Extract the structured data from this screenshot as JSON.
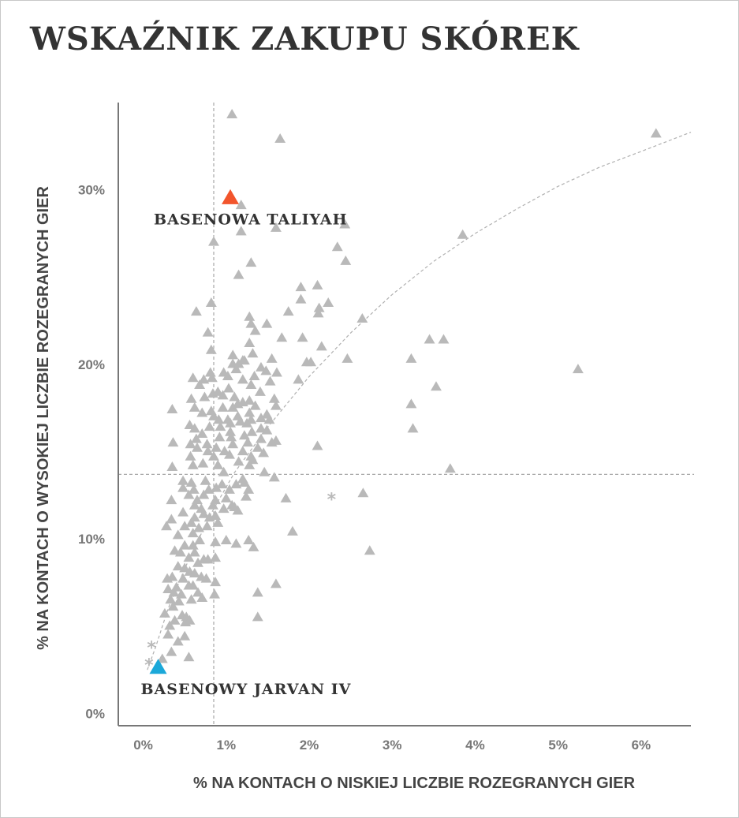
{
  "chart_data": {
    "type": "scatter",
    "title": "WSKAŹNIK ZAKUPU SKÓREK",
    "xlabel": "% NA KONTACH O NISKIEJ LICZBIE ROZEGRANYCH GIER",
    "ylabel": "% NA KONTACH O WYSOKIEJ LICZBIE ROZEGRANYCH GIER",
    "xlim": [
      -0.3,
      6.6
    ],
    "ylim": [
      -0.7,
      35
    ],
    "x_ticks": [
      0,
      1,
      2,
      3,
      4,
      5,
      6
    ],
    "x_tick_labels": [
      "0%",
      "1%",
      "2%",
      "3%",
      "4%",
      "5%",
      "6%"
    ],
    "y_ticks": [
      0,
      10,
      20,
      30
    ],
    "y_tick_labels": [
      "0%",
      "10%",
      "20%",
      "30%"
    ],
    "grid": false,
    "reference_lines": {
      "x": 0.85,
      "y": 13.7
    },
    "trend_curve": [
      [
        0.05,
        2.5
      ],
      [
        0.15,
        3.8
      ],
      [
        0.3,
        6
      ],
      [
        0.5,
        8.3
      ],
      [
        0.8,
        11.3
      ],
      [
        1.1,
        13.8
      ],
      [
        1.5,
        16.4
      ],
      [
        2,
        19.3
      ],
      [
        2.5,
        21.8
      ],
      [
        3,
        24
      ],
      [
        3.5,
        25.9
      ],
      [
        4,
        27.5
      ],
      [
        4.5,
        28.9
      ],
      [
        5,
        30.2
      ],
      [
        5.5,
        31.3
      ],
      [
        6,
        32.2
      ],
      [
        6.6,
        33.3
      ]
    ],
    "colors": {
      "points": "#b9b9b9",
      "taliyah": "#f2552c",
      "jarvan": "#1ba8d9",
      "lines": "#a8a8a8"
    },
    "highlights": [
      {
        "label": "BASENOWA TALIYAH",
        "x": 1.05,
        "y": 29.5,
        "color": "#f2552c"
      },
      {
        "label": "BASENOWY JARVAN IV",
        "x": 0.18,
        "y": 2.6,
        "color": "#1ba8d9"
      }
    ],
    "asterisk_points": [
      [
        2.27,
        12.3
      ],
      [
        0.1,
        3.8
      ],
      [
        0.07,
        2.8
      ]
    ],
    "points": [
      [
        1.07,
        34.3
      ],
      [
        1.65,
        32.9
      ],
      [
        6.18,
        33.2
      ],
      [
        1.18,
        29.1
      ],
      [
        2.43,
        28
      ],
      [
        1.18,
        27.6
      ],
      [
        1.6,
        27.8
      ],
      [
        3.85,
        27.4
      ],
      [
        0.85,
        27
      ],
      [
        2.34,
        26.7
      ],
      [
        2.44,
        25.9
      ],
      [
        1.3,
        25.8
      ],
      [
        1.15,
        25.1
      ],
      [
        1.9,
        24.4
      ],
      [
        2.1,
        24.5
      ],
      [
        1.9,
        23.7
      ],
      [
        2.23,
        23.5
      ],
      [
        2.12,
        23.2
      ],
      [
        1.75,
        23
      ],
      [
        0.64,
        23
      ],
      [
        0.82,
        23.5
      ],
      [
        2.11,
        22.9
      ],
      [
        1.28,
        22.7
      ],
      [
        1.49,
        22.3
      ],
      [
        2.64,
        22.6
      ],
      [
        1.3,
        22.3
      ],
      [
        1.35,
        21.9
      ],
      [
        0.78,
        21.8
      ],
      [
        1.67,
        21.5
      ],
      [
        1.92,
        21.5
      ],
      [
        3.45,
        21.4
      ],
      [
        3.62,
        21.4
      ],
      [
        1.28,
        21.2
      ],
      [
        1.32,
        20.6
      ],
      [
        0.82,
        20.8
      ],
      [
        2.15,
        21
      ],
      [
        1.08,
        20.5
      ],
      [
        1.22,
        20.2
      ],
      [
        1.2,
        20.2
      ],
      [
        1.08,
        20
      ],
      [
        1.15,
        20
      ],
      [
        1.55,
        20.3
      ],
      [
        2.02,
        20.1
      ],
      [
        2.46,
        20.3
      ],
      [
        3.23,
        20.3
      ],
      [
        1.97,
        20.1
      ],
      [
        5.24,
        19.7
      ],
      [
        0.81,
        19.5
      ],
      [
        1.12,
        19.7
      ],
      [
        1.42,
        19.8
      ],
      [
        1.48,
        19.6
      ],
      [
        1.61,
        19.5
      ],
      [
        0.6,
        19.2
      ],
      [
        0.73,
        19.1
      ],
      [
        0.83,
        19.2
      ],
      [
        0.97,
        19.5
      ],
      [
        1.02,
        19.3
      ],
      [
        1.2,
        19.1
      ],
      [
        1.34,
        19.3
      ],
      [
        1.53,
        19
      ],
      [
        1.87,
        19.1
      ],
      [
        1.3,
        18.8
      ],
      [
        0.68,
        18.8
      ],
      [
        1.03,
        18.6
      ],
      [
        1.41,
        18.4
      ],
      [
        3.53,
        18.7
      ],
      [
        0.84,
        18.3
      ],
      [
        0.9,
        18.4
      ],
      [
        0.96,
        18.2
      ],
      [
        1.1,
        18.1
      ],
      [
        0.58,
        18
      ],
      [
        0.74,
        18.1
      ],
      [
        1.28,
        17.9
      ],
      [
        1.58,
        18
      ],
      [
        1.2,
        17.8
      ],
      [
        1.35,
        17.6
      ],
      [
        1.6,
        17.6
      ],
      [
        3.23,
        17.7
      ],
      [
        0.62,
        17.5
      ],
      [
        0.82,
        17.3
      ],
      [
        0.96,
        17.5
      ],
      [
        1.08,
        17.5
      ],
      [
        1.14,
        17.7
      ],
      [
        0.35,
        17.4
      ],
      [
        0.71,
        17.2
      ],
      [
        1.28,
        17.2
      ],
      [
        1.49,
        17.1
      ],
      [
        0.85,
        17
      ],
      [
        0.91,
        16.8
      ],
      [
        1.02,
        16.8
      ],
      [
        1.14,
        17
      ],
      [
        1.3,
        16.8
      ],
      [
        1.42,
        16.9
      ],
      [
        1.52,
        16.8
      ],
      [
        0.56,
        16.5
      ],
      [
        1.05,
        16.6
      ],
      [
        1.17,
        16.7
      ],
      [
        1.25,
        16.6
      ],
      [
        0.62,
        16.3
      ],
      [
        0.8,
        16.4
      ],
      [
        0.93,
        16.4
      ],
      [
        1.42,
        16.3
      ],
      [
        3.25,
        16.3
      ],
      [
        0.71,
        16
      ],
      [
        1.05,
        16.1
      ],
      [
        1.31,
        16.1
      ],
      [
        1.49,
        16.2
      ],
      [
        0.64,
        15.7
      ],
      [
        0.92,
        15.8
      ],
      [
        1.06,
        15.8
      ],
      [
        1.22,
        15.9
      ],
      [
        1.42,
        15.7
      ],
      [
        1.6,
        15.6
      ],
      [
        0.36,
        15.5
      ],
      [
        0.57,
        15.4
      ],
      [
        0.77,
        15.4
      ],
      [
        1.08,
        15.4
      ],
      [
        1.26,
        15.5
      ],
      [
        1.55,
        15.5
      ],
      [
        2.1,
        15.3
      ],
      [
        0.65,
        15.2
      ],
      [
        0.88,
        15.2
      ],
      [
        1.38,
        15.2
      ],
      [
        0.78,
        15
      ],
      [
        0.98,
        15
      ],
      [
        1.2,
        15
      ],
      [
        1.45,
        14.9
      ],
      [
        0.57,
        14.7
      ],
      [
        0.85,
        14.7
      ],
      [
        1.04,
        14.8
      ],
      [
        1.3,
        14.7
      ],
      [
        1.32,
        14.5
      ],
      [
        1.15,
        14.4
      ],
      [
        0.72,
        14.3
      ],
      [
        0.35,
        14.1
      ],
      [
        0.6,
        14.2
      ],
      [
        0.9,
        14.2
      ],
      [
        1.28,
        14.2
      ],
      [
        3.7,
        14
      ],
      [
        0.97,
        13.8
      ],
      [
        1.46,
        13.8
      ],
      [
        1.2,
        13.4
      ],
      [
        1.58,
        13.5
      ],
      [
        0.58,
        13.2
      ],
      [
        0.48,
        13.3
      ],
      [
        0.75,
        13.3
      ],
      [
        0.95,
        13.1
      ],
      [
        1.12,
        13.1
      ],
      [
        1.22,
        13.2
      ],
      [
        1.27,
        12.8
      ],
      [
        0.48,
        12.9
      ],
      [
        0.61,
        12.8
      ],
      [
        0.79,
        12.8
      ],
      [
        0.88,
        12.9
      ],
      [
        1.04,
        12.8
      ],
      [
        1.24,
        12.4
      ],
      [
        0.55,
        12.5
      ],
      [
        0.73,
        12.5
      ],
      [
        1.0,
        12.3
      ],
      [
        2.65,
        12.6
      ],
      [
        0.34,
        12.2
      ],
      [
        0.65,
        12.2
      ],
      [
        0.87,
        12.2
      ],
      [
        1.72,
        12.3
      ],
      [
        0.62,
        11.9
      ],
      [
        0.84,
        11.9
      ],
      [
        1.07,
        11.9
      ],
      [
        0.7,
        11.7
      ],
      [
        0.97,
        11.7
      ],
      [
        1.1,
        11.8
      ],
      [
        0.48,
        11.5
      ],
      [
        0.73,
        11.4
      ],
      [
        0.87,
        11.3
      ],
      [
        1.14,
        11.6
      ],
      [
        0.34,
        11.1
      ],
      [
        0.62,
        11.2
      ],
      [
        0.8,
        11.2
      ],
      [
        0.58,
        10.9
      ],
      [
        0.9,
        10.9
      ],
      [
        0.28,
        10.7
      ],
      [
        0.5,
        10.7
      ],
      [
        0.67,
        10.6
      ],
      [
        0.77,
        10.7
      ],
      [
        0.6,
        10.3
      ],
      [
        0.42,
        10.2
      ],
      [
        1.8,
        10.4
      ],
      [
        0.68,
        9.9
      ],
      [
        0.87,
        9.8
      ],
      [
        0.5,
        9.6
      ],
      [
        0.6,
        9.6
      ],
      [
        1.0,
        9.9
      ],
      [
        1.27,
        9.9
      ],
      [
        1.33,
        9.5
      ],
      [
        1.12,
        9.7
      ],
      [
        0.38,
        9.3
      ],
      [
        0.45,
        9.2
      ],
      [
        0.62,
        9.2
      ],
      [
        2.73,
        9.3
      ],
      [
        0.55,
        8.9
      ],
      [
        0.73,
        8.8
      ],
      [
        0.87,
        8.9
      ],
      [
        0.66,
        8.6
      ],
      [
        0.78,
        8.8
      ],
      [
        0.42,
        8.4
      ],
      [
        0.5,
        8.3
      ],
      [
        0.56,
        8.1
      ],
      [
        0.62,
        8
      ],
      [
        0.35,
        7.8
      ],
      [
        0.7,
        7.8
      ],
      [
        0.29,
        7.7
      ],
      [
        0.48,
        7.7
      ],
      [
        0.76,
        7.7
      ],
      [
        0.87,
        7.5
      ],
      [
        0.6,
        7.3
      ],
      [
        0.4,
        7.2
      ],
      [
        0.55,
        7.3
      ],
      [
        1.6,
        7.4
      ],
      [
        0.3,
        7.1
      ],
      [
        0.37,
        6.9
      ],
      [
        0.46,
        6.8
      ],
      [
        0.66,
        6.9
      ],
      [
        0.86,
        6.8
      ],
      [
        1.38,
        6.9
      ],
      [
        0.71,
        6.6
      ],
      [
        0.33,
        6.5
      ],
      [
        0.43,
        6.4
      ],
      [
        0.58,
        6.5
      ],
      [
        0.36,
        6.1
      ],
      [
        0.26,
        5.7
      ],
      [
        0.47,
        5.6
      ],
      [
        0.52,
        5.5
      ],
      [
        0.38,
        5.3
      ],
      [
        0.51,
        5.2
      ],
      [
        0.56,
        5.3
      ],
      [
        0.32,
        5
      ],
      [
        1.38,
        5.5
      ],
      [
        0.3,
        4.5
      ],
      [
        0.5,
        4.4
      ],
      [
        0.42,
        4.1
      ],
      [
        0.34,
        3.5
      ],
      [
        0.55,
        3.2
      ],
      [
        0.23,
        3.1
      ]
    ]
  }
}
